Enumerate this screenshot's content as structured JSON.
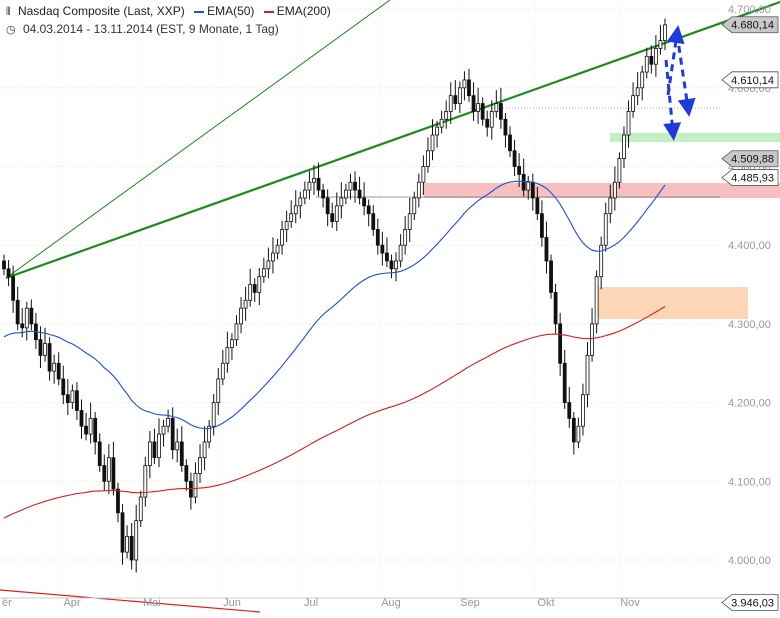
{
  "header": {
    "title": "Nasdaq Composite (Last, XXP)",
    "legend": [
      {
        "label": "EMA(50)",
        "color": "#1f4fd6"
      },
      {
        "label": "EMA(200)",
        "color": "#d81e1e"
      }
    ],
    "range": "04.03.2014 - 13.11.2014 (EST, 9 Monate, 1 Tag)",
    "icon_title": "chart-bars-icon",
    "icon_range": "clock-icon"
  },
  "chart_data": {
    "type": "candlestick",
    "x_axis": {
      "tick_labels": [
        "Apr",
        "Mai",
        "Jun",
        "Jul",
        "Aug",
        "Sep",
        "Okt",
        "Nov"
      ],
      "partial_left_label": "ër"
    },
    "y_axis": {
      "tick_labels": [
        "4.000,00",
        "4.100,00",
        "4.200,00",
        "4.300,00",
        "4.400,00",
        "4.500,00",
        "4.600,00",
        "4.700,00"
      ],
      "ticks": [
        4000,
        4100,
        4200,
        4300,
        4400,
        4500,
        4600,
        4700
      ],
      "range": [
        3946,
        4772
      ]
    },
    "price_markers": [
      {
        "label": "4.680,14",
        "value": 4680.14,
        "style": "gray"
      },
      {
        "label": "4.610,14",
        "value": 4610.14,
        "style": "white"
      },
      {
        "label": "4.509,88",
        "value": 4509.88,
        "style": "gray"
      },
      {
        "label": "4.485,93",
        "value": 4485.93,
        "style": "white"
      },
      {
        "label": "3.946,03",
        "value": 3946.03,
        "style": "white"
      }
    ],
    "series": [
      {
        "name": "EMA(50)",
        "color": "#1f4fd6"
      },
      {
        "name": "EMA(200)",
        "color": "#d81e1e"
      }
    ],
    "closes": [
      4370,
      4360,
      4330,
      4300,
      4295,
      4320,
      4300,
      4280,
      4260,
      4275,
      4240,
      4250,
      4230,
      4210,
      4200,
      4215,
      4190,
      4170,
      4160,
      4180,
      4150,
      4120,
      4100,
      4130,
      4090,
      4060,
      4010,
      4030,
      4000,
      4050,
      4080,
      4120,
      4150,
      4130,
      4160,
      4170,
      4180,
      4140,
      4150,
      4120,
      4100,
      4080,
      4110,
      4130,
      4150,
      4170,
      4200,
      4230,
      4250,
      4270,
      4280,
      4300,
      4320,
      4330,
      4350,
      4340,
      4360,
      4370,
      4380,
      4390,
      4400,
      4420,
      4430,
      4440,
      4450,
      4460,
      4470,
      4480,
      4485,
      4470,
      4460,
      4440,
      4430,
      4450,
      4460,
      4470,
      4480,
      4470,
      4460,
      4450,
      4440,
      4420,
      4400,
      4390,
      4380,
      4370,
      4380,
      4400,
      4420,
      4440,
      4460,
      4480,
      4500,
      4520,
      4540,
      4550,
      4560,
      4570,
      4590,
      4580,
      4600,
      4610,
      4590,
      4570,
      4580,
      4560,
      4550,
      4570,
      4580,
      4560,
      4540,
      4520,
      4500,
      4490,
      4470,
      4480,
      4460,
      4440,
      4410,
      4380,
      4340,
      4300,
      4250,
      4200,
      4180,
      4150,
      4170,
      4210,
      4260,
      4300,
      4360,
      4400,
      4440,
      4460,
      4480,
      4510,
      4540,
      4570,
      4590,
      4600,
      4620,
      4640,
      4630,
      4650,
      4660,
      4680
    ]
  }
}
